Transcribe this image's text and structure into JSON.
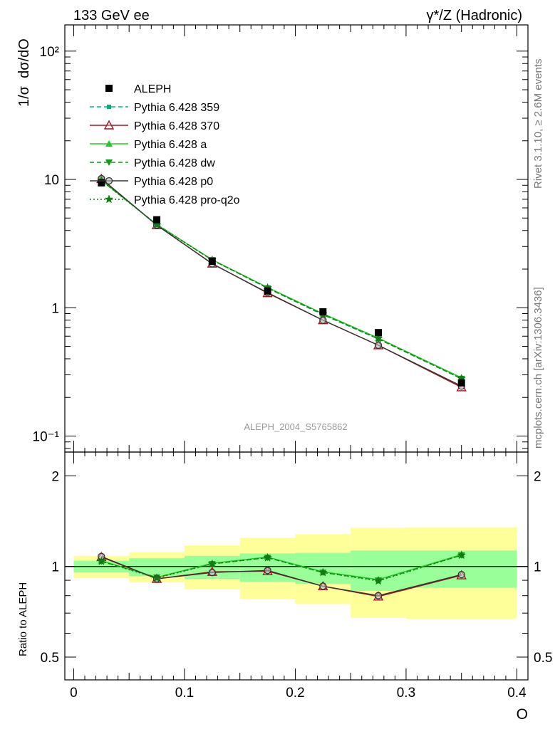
{
  "header": {
    "left": "133 GeV ee",
    "right": "γ*/Z (Hadronic)"
  },
  "side_labels": {
    "rivet": "Rivet 3.1.10, ≥ 2.6M events",
    "mcplots": "mcplots.cern.ch [arXiv:1306.3436]"
  },
  "watermark": "ALEPH_2004_S5765862",
  "chart_data": [
    {
      "type": "line",
      "panel": "main",
      "ylabel": "1/σ  dσ/dO",
      "yscale": "log",
      "ylim": [
        0.075,
        160
      ],
      "xlim": [
        -0.008,
        0.41
      ],
      "y_tick_labels": [
        "10⁻¹",
        "1",
        "10",
        "10²"
      ],
      "x": [
        0.025,
        0.075,
        0.125,
        0.175,
        0.225,
        0.275,
        0.35
      ],
      "data": {
        "name": "ALEPH",
        "values": [
          9.4,
          4.85,
          2.3,
          1.35,
          0.93,
          0.64,
          0.26
        ]
      },
      "series": [
        {
          "name": "Pythia 6.428 359",
          "color": "#00b37a",
          "dash": "6,4",
          "marker": "square-small",
          "values": [
            9.9,
            4.45,
            2.35,
            1.42,
            0.88,
            0.57,
            0.28
          ]
        },
        {
          "name": "Pythia 6.428 370",
          "color": "#a0141e",
          "dash": "",
          "marker": "triangle-open",
          "values": [
            10.1,
            4.4,
            2.21,
            1.3,
            0.8,
            0.51,
            0.24
          ]
        },
        {
          "name": "Pythia 6.428 a",
          "color": "#22cc22",
          "dash": "",
          "marker": "triangle-filled",
          "values": [
            9.85,
            4.45,
            2.37,
            1.44,
            0.9,
            0.58,
            0.285
          ]
        },
        {
          "name": "Pythia 6.428 dw",
          "color": "#129912",
          "dash": "6,4",
          "marker": "triangle-down",
          "values": [
            9.8,
            4.45,
            2.36,
            1.42,
            0.89,
            0.57,
            0.28
          ]
        },
        {
          "name": "Pythia 6.428 p0",
          "color": "#333333",
          "dash": "",
          "marker": "circle-open",
          "values": [
            10.15,
            4.4,
            2.2,
            1.31,
            0.8,
            0.51,
            0.245
          ]
        },
        {
          "name": "Pythia 6.428 pro-q2o",
          "color": "#127a12",
          "dash": "2,3",
          "marker": "star",
          "values": [
            9.8,
            4.42,
            2.35,
            1.43,
            0.89,
            0.575,
            0.28
          ]
        }
      ]
    },
    {
      "type": "line",
      "panel": "ratio",
      "ylabel": "Ratio to ALEPH",
      "xlabel": "O",
      "yscale": "log",
      "ylim": [
        0.42,
        2.4
      ],
      "xlim": [
        -0.008,
        0.41
      ],
      "y_tick_labels": [
        "0.5",
        "1",
        "2"
      ],
      "x_tick_labels": [
        "0",
        "0.1",
        "0.2",
        "0.3",
        "0.4"
      ],
      "bins": [
        [
          0,
          0.05
        ],
        [
          0.05,
          0.1
        ],
        [
          0.1,
          0.15
        ],
        [
          0.15,
          0.2
        ],
        [
          0.2,
          0.25
        ],
        [
          0.25,
          0.3
        ],
        [
          0.3,
          0.4
        ]
      ],
      "band_stat": [
        [
          0.955,
          1.045
        ],
        [
          0.93,
          1.065
        ],
        [
          0.91,
          1.085
        ],
        [
          0.89,
          1.105
        ],
        [
          0.875,
          1.11
        ],
        [
          0.83,
          1.13
        ],
        [
          0.85,
          1.13
        ]
      ],
      "band_total": [
        [
          0.915,
          1.085
        ],
        [
          0.885,
          1.115
        ],
        [
          0.84,
          1.175
        ],
        [
          0.78,
          1.245
        ],
        [
          0.75,
          1.28
        ],
        [
          0.675,
          1.345
        ],
        [
          0.67,
          1.35
        ]
      ],
      "x": [
        0.025,
        0.075,
        0.125,
        0.175,
        0.225,
        0.275,
        0.35
      ],
      "series": [
        {
          "name": "Pythia 6.428 359",
          "values": [
            1.04,
            0.92,
            1.02,
            1.07,
            0.955,
            0.9,
            1.09
          ]
        },
        {
          "name": "Pythia 6.428 370",
          "values": [
            1.075,
            0.91,
            0.96,
            0.965,
            0.86,
            0.795,
            0.935
          ]
        },
        {
          "name": "Pythia 6.428 a",
          "values": [
            1.045,
            0.92,
            1.025,
            1.075,
            0.96,
            0.905,
            1.095
          ]
        },
        {
          "name": "Pythia 6.428 dw",
          "values": [
            1.04,
            0.92,
            1.02,
            1.07,
            0.955,
            0.9,
            1.09
          ]
        },
        {
          "name": "Pythia 6.428 p0",
          "values": [
            1.08,
            0.91,
            0.955,
            0.97,
            0.86,
            0.8,
            0.94
          ]
        },
        {
          "name": "Pythia 6.428 pro-q2o",
          "values": [
            1.04,
            0.915,
            1.02,
            1.07,
            0.955,
            0.895,
            1.09
          ]
        }
      ]
    }
  ]
}
